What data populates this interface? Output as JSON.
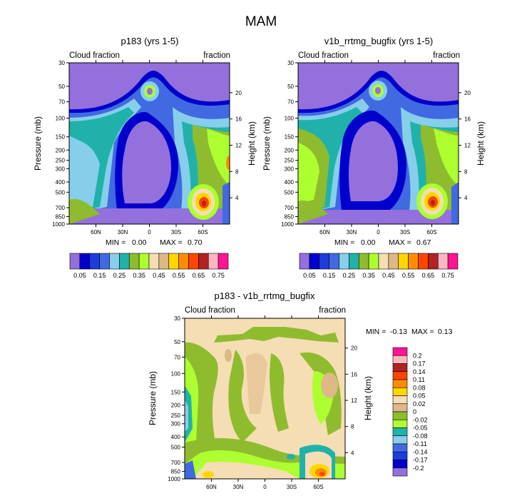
{
  "figure": {
    "title": "MAM"
  },
  "chart_data": [
    {
      "type": "heatmap",
      "title": "p183 (yrs 1-5)",
      "field_label_left": "Cloud fraction",
      "field_label_right": "fraction",
      "ylabel": "Pressure (mb)",
      "ylabel_right": "Height (km)",
      "y_ticks": [
        "30",
        "50",
        "70",
        "100",
        "150",
        "200",
        "250",
        "300",
        "400",
        "500",
        "700",
        "850",
        "1000"
      ],
      "height_ticks": [
        "20",
        "16",
        "12",
        "8",
        "4"
      ],
      "x_ticks": [
        "60N",
        "30N",
        "0",
        "30S",
        "60S"
      ],
      "min_label": "MIN =",
      "min_value": "0.00",
      "max_label": "MAX =",
      "max_value": "0.70",
      "colorbar_levels": [
        "0.05",
        "0.1",
        "0.15",
        "0.2",
        "0.25",
        "0.3",
        "0.35",
        "0.4",
        "0.45",
        "0.5",
        "0.55",
        "0.6",
        "0.65",
        "0.7",
        "0.75"
      ],
      "colorbar_labels": [
        "0.05",
        "0.15",
        "0.25",
        "0.35",
        "0.45",
        "0.55",
        "0.65",
        "0.75"
      ],
      "colors": [
        "#9370db",
        "#0000cd",
        "#1e3cdc",
        "#4169e1",
        "#87ceeb",
        "#20b2aa",
        "#8fbc2f",
        "#adff2f",
        "#f5deb3",
        "#deb887",
        "#ffd700",
        "#ff8c00",
        "#ff4500",
        "#b22222",
        "#ffb6c1",
        "#ff1493"
      ]
    },
    {
      "type": "heatmap",
      "title": "v1b_rrtmg_bugfix (yrs 1-5)",
      "field_label_left": "Cloud fraction",
      "field_label_right": "fraction",
      "ylabel": "Pressure (mb)",
      "ylabel_right": "Height (km)",
      "y_ticks": [
        "30",
        "50",
        "70",
        "100",
        "150",
        "200",
        "250",
        "300",
        "400",
        "500",
        "700",
        "850",
        "1000"
      ],
      "height_ticks": [
        "20",
        "16",
        "12",
        "8",
        "4"
      ],
      "x_ticks": [
        "60N",
        "30N",
        "0",
        "30S",
        "60S"
      ],
      "min_label": "MIN =",
      "min_value": "0.00",
      "max_label": "MAX =",
      "max_value": "0.67",
      "colorbar_levels": [
        "0.05",
        "0.1",
        "0.15",
        "0.2",
        "0.25",
        "0.3",
        "0.35",
        "0.4",
        "0.45",
        "0.5",
        "0.55",
        "0.6",
        "0.65",
        "0.7",
        "0.75"
      ],
      "colorbar_labels": [
        "0.05",
        "0.15",
        "0.25",
        "0.35",
        "0.45",
        "0.55",
        "0.65",
        "0.75"
      ],
      "colors": [
        "#9370db",
        "#0000cd",
        "#1e3cdc",
        "#4169e1",
        "#87ceeb",
        "#20b2aa",
        "#8fbc2f",
        "#adff2f",
        "#f5deb3",
        "#deb887",
        "#ffd700",
        "#ff8c00",
        "#ff4500",
        "#b22222",
        "#ffb6c1",
        "#ff1493"
      ]
    },
    {
      "type": "heatmap",
      "title": "p183 - v1b_rrtmg_bugfix",
      "field_label_left": "Cloud fraction",
      "field_label_right": "fraction",
      "ylabel": "Pressure (mb)",
      "ylabel_right": "Height (km)",
      "y_ticks": [
        "30",
        "50",
        "70",
        "100",
        "150",
        "200",
        "250",
        "300",
        "400",
        "500",
        "700",
        "850",
        "1000"
      ],
      "height_ticks": [
        "20",
        "16",
        "12",
        "8",
        "4"
      ],
      "x_ticks": [
        "60N",
        "30N",
        "0",
        "30S",
        "60S"
      ],
      "min_label": "MIN =",
      "min_value": "-0.13",
      "max_label": "MAX =",
      "max_value": "0.13",
      "colorbar_labels": [
        "0.2",
        "0.17",
        "0.14",
        "0.11",
        "0.08",
        "0.05",
        "0.02",
        "0",
        "-0.02",
        "-0.05",
        "-0.08",
        "-0.11",
        "-0.14",
        "-0.17",
        "-0.2"
      ],
      "colors": [
        "#ff1493",
        "#ffb6c1",
        "#b22222",
        "#ff4500",
        "#ff8c00",
        "#ffd700",
        "#f5deb3",
        "#deb887",
        "#8fbc2f",
        "#adff2f",
        "#20b2aa",
        "#87ceeb",
        "#4169e1",
        "#1e3cdc",
        "#0000cd",
        "#9370db"
      ]
    }
  ]
}
